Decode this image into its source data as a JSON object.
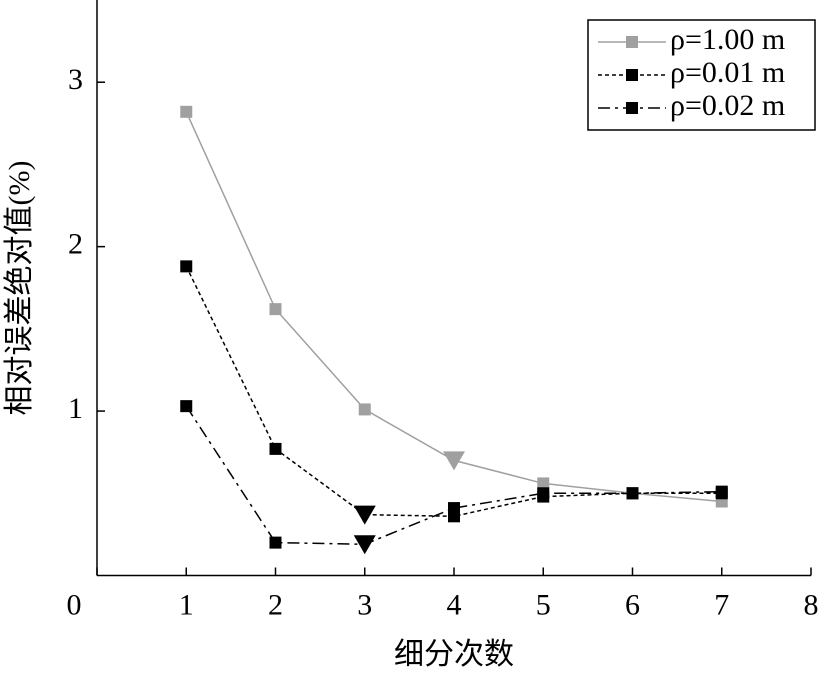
{
  "chart_data": {
    "type": "line",
    "x_label": "细分次数",
    "y_label": "相对误差绝对值(%)",
    "x": [
      1,
      2,
      3,
      4,
      5,
      6,
      7
    ],
    "series": [
      {
        "name": "ρ=1.00 m",
        "color": "#a0a0a0",
        "linestyle": "solid",
        "highlight": 3,
        "values": [
          2.82,
          1.62,
          1.01,
          0.7,
          0.56,
          0.5,
          0.45
        ]
      },
      {
        "name": "ρ=0.01 m",
        "color": "#000000",
        "linestyle": "dotted",
        "highlight": 2,
        "values": [
          1.88,
          0.77,
          0.37,
          0.36,
          0.48,
          0.5,
          0.5
        ]
      },
      {
        "name": "ρ=0.02 m",
        "color": "#000000",
        "linestyle": "dashdot",
        "highlight": 2,
        "values": [
          1.03,
          0.2,
          0.19,
          0.41,
          0.5,
          0.5,
          0.51
        ]
      }
    ],
    "xlim": [
      0,
      8
    ],
    "xticks": [
      0,
      1,
      2,
      3,
      4,
      5,
      6,
      7,
      8
    ],
    "ylim": [
      0,
      3.5
    ],
    "yticks": [
      1,
      2,
      3
    ],
    "legend": "upper right"
  }
}
